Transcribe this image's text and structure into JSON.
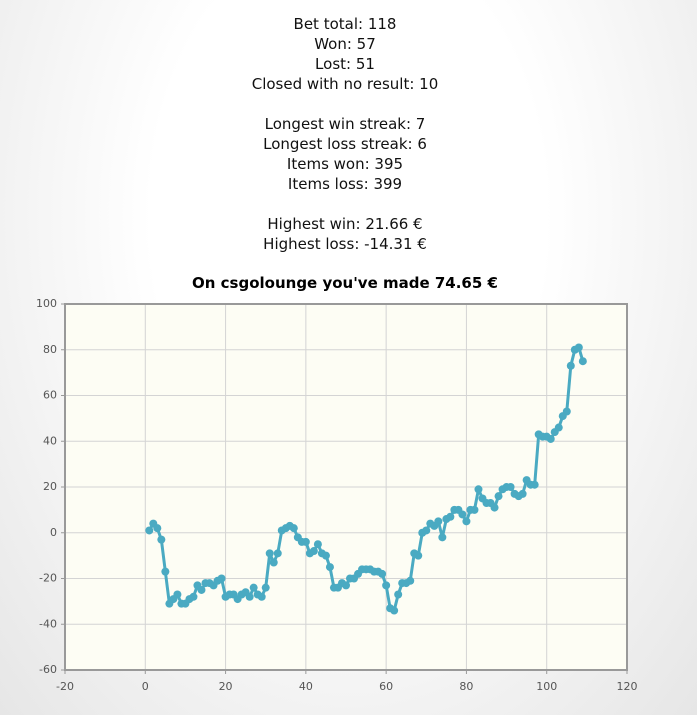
{
  "stats": {
    "groups": [
      [
        "Bet total: 118",
        "Won: 57",
        "Lost: 51",
        "Closed with no result: 10"
      ],
      [
        "Longest win streak: 7",
        "Longest loss streak: 6",
        "Items won: 395",
        "Items loss: 399"
      ],
      [
        "Highest win: 21.66 €",
        "Highest loss: -14.31 €"
      ]
    ]
  },
  "chart_data": {
    "type": "line",
    "title": "On csgolounge you've made 74.65 €",
    "x": [
      1,
      2,
      3,
      4,
      5,
      6,
      7,
      8,
      9,
      10,
      11,
      12,
      13,
      14,
      15,
      16,
      17,
      18,
      19,
      20,
      21,
      22,
      23,
      24,
      25,
      26,
      27,
      28,
      29,
      30,
      31,
      32,
      33,
      34,
      35,
      36,
      37,
      38,
      39,
      40,
      41,
      42,
      43,
      44,
      45,
      46,
      47,
      48,
      49,
      50,
      51,
      52,
      53,
      54,
      55,
      56,
      57,
      58,
      59,
      60,
      61,
      62,
      63,
      64,
      65,
      66,
      67,
      68,
      69,
      70,
      71,
      72,
      73,
      74,
      75,
      76,
      77,
      78,
      79,
      80,
      81,
      82,
      83,
      84,
      85,
      86,
      87,
      88,
      89,
      90,
      91,
      92,
      93,
      94,
      95,
      96,
      97,
      98,
      99,
      100,
      101,
      102,
      103,
      104,
      105,
      106,
      107,
      108,
      109
    ],
    "series": [
      {
        "color": "#4aaac2",
        "values": [
          1,
          4,
          2,
          -3,
          -17,
          -31,
          -29,
          -27,
          -31,
          -31,
          -29,
          -28,
          -23,
          -25,
          -22,
          -22,
          -23,
          -21,
          -20,
          -28,
          -27,
          -27,
          -29,
          -27,
          -26,
          -28,
          -24,
          -27,
          -28,
          -24,
          -9,
          -13,
          -9,
          1,
          2,
          3,
          2,
          -2,
          -4,
          -4,
          -9,
          -8,
          -5,
          -9,
          -10,
          -15,
          -24,
          -24,
          -22,
          -23,
          -20,
          -20,
          -18,
          -16,
          -16,
          -16,
          -17,
          -17,
          -18,
          -23,
          -33,
          -34,
          -27,
          -22,
          -22,
          -21,
          -9,
          -10,
          0,
          1,
          4,
          3,
          5,
          -2,
          6,
          7,
          10,
          10,
          8,
          5,
          10,
          10,
          19,
          15,
          13,
          13,
          11,
          16,
          19,
          20,
          20,
          17,
          16,
          17,
          23,
          21,
          21,
          43,
          42,
          42,
          41,
          44,
          46,
          51,
          53,
          73,
          80,
          81,
          75
        ]
      }
    ],
    "xlim": [
      -20,
      120
    ],
    "xticks": [
      -20,
      0,
      20,
      40,
      60,
      80,
      100,
      120
    ],
    "ylim": [
      -60,
      100
    ],
    "yticks": [
      -60,
      -40,
      -20,
      0,
      20,
      40,
      60,
      80,
      100
    ],
    "grid": true
  }
}
